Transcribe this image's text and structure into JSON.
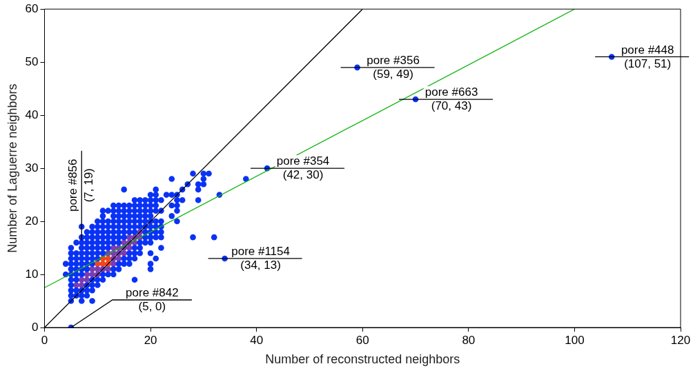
{
  "chart_data": {
    "type": "scatter",
    "xlabel": "Number of reconstructed neighbors",
    "ylabel": "Number of Laguerre neighbors",
    "xlim": [
      0,
      120
    ],
    "xticks": [
      0,
      20,
      40,
      60,
      80,
      100,
      120
    ],
    "ylim": [
      0,
      60
    ],
    "yticks": [
      0,
      10,
      20,
      30,
      40,
      50,
      60
    ],
    "grid": false,
    "marker": "circle",
    "series": [
      {
        "color": "#0a32f5",
        "x": [
          5,
          7,
          9,
          5,
          6,
          7,
          8,
          5,
          6,
          7,
          8,
          9,
          5,
          8,
          9,
          10,
          5,
          6,
          9,
          10,
          11,
          17,
          4,
          5,
          6,
          7,
          11,
          12,
          13,
          5,
          6,
          7,
          8,
          13,
          14,
          20,
          4,
          5,
          6,
          7,
          8,
          9,
          14,
          15,
          16,
          20,
          5,
          6,
          7,
          8,
          9,
          10,
          15,
          16,
          17,
          21,
          5,
          6,
          7,
          8,
          9,
          10,
          11,
          16,
          17,
          18,
          20,
          5,
          7,
          8,
          9,
          10,
          11,
          12,
          17,
          18,
          22,
          6,
          7,
          8,
          9,
          10,
          11,
          12,
          13,
          14,
          18,
          19,
          20,
          7,
          8,
          9,
          10,
          11,
          12,
          13,
          14,
          15,
          19,
          20,
          21,
          22,
          28,
          32,
          8,
          9,
          10,
          11,
          12,
          13,
          14,
          15,
          16,
          17,
          19,
          20,
          21,
          22,
          7,
          9,
          10,
          11,
          12,
          13,
          14,
          15,
          16,
          17,
          18,
          19,
          20,
          21,
          22,
          10,
          11,
          12,
          13,
          14,
          15,
          16,
          17,
          18,
          19,
          20,
          21,
          22,
          25,
          11,
          13,
          14,
          15,
          16,
          17,
          18,
          19,
          20,
          24,
          11,
          12,
          13,
          14,
          15,
          16,
          17,
          18,
          19,
          20,
          21,
          22,
          25,
          13,
          14,
          15,
          16,
          17,
          18,
          19,
          20,
          21,
          24,
          25,
          17,
          18,
          19,
          20,
          21,
          22,
          25,
          26,
          29,
          20,
          21,
          23,
          24,
          25,
          33,
          15,
          21,
          26,
          29,
          27,
          29,
          30,
          24,
          30,
          38,
          28,
          30,
          31,
          5,
          34,
          42,
          59,
          70,
          107
        ],
        "values": [
          5,
          5,
          5,
          6,
          6,
          6,
          6,
          7,
          7,
          7,
          7,
          7,
          8,
          8,
          8,
          8,
          9,
          9,
          9,
          9,
          9,
          9,
          10,
          10,
          10,
          10,
          10,
          10,
          10,
          11,
          11,
          11,
          11,
          11,
          11,
          11,
          12,
          12,
          12,
          12,
          12,
          12,
          12,
          12,
          12,
          12,
          13,
          13,
          13,
          13,
          13,
          13,
          13,
          13,
          13,
          13,
          14,
          14,
          14,
          14,
          14,
          14,
          14,
          14,
          14,
          14,
          14,
          15,
          15,
          15,
          15,
          15,
          15,
          15,
          15,
          15,
          15,
          16,
          16,
          16,
          16,
          16,
          16,
          16,
          16,
          16,
          16,
          16,
          16,
          17,
          17,
          17,
          17,
          17,
          17,
          17,
          17,
          17,
          17,
          17,
          17,
          17,
          17,
          17,
          18,
          18,
          18,
          18,
          18,
          18,
          18,
          18,
          18,
          18,
          18,
          18,
          18,
          18,
          19,
          19,
          19,
          19,
          19,
          19,
          19,
          19,
          19,
          19,
          19,
          19,
          19,
          19,
          19,
          20,
          20,
          20,
          20,
          20,
          20,
          20,
          20,
          20,
          20,
          20,
          20,
          20,
          20,
          21,
          21,
          21,
          21,
          21,
          21,
          21,
          21,
          21,
          21,
          22,
          22,
          22,
          22,
          22,
          22,
          22,
          22,
          22,
          22,
          22,
          22,
          22,
          23,
          23,
          23,
          23,
          23,
          23,
          23,
          23,
          23,
          23,
          23,
          24,
          24,
          24,
          24,
          24,
          24,
          24,
          24,
          24,
          25,
          25,
          25,
          25,
          25,
          25,
          26,
          26,
          26,
          26,
          27,
          27,
          27,
          28,
          28,
          28,
          29,
          29,
          29,
          0,
          13,
          30,
          49,
          43,
          51
        ]
      },
      {
        "color": "#7a3cb4",
        "x": [
          6,
          7,
          7,
          8,
          8,
          9,
          10,
          9,
          10,
          11,
          12,
          13,
          13,
          14,
          12,
          13,
          14,
          15,
          13,
          14,
          15,
          16,
          15,
          16,
          17,
          16,
          17,
          18,
          18
        ],
        "values": [
          8,
          8,
          9,
          9,
          10,
          10,
          10,
          11,
          11,
          11,
          11,
          12,
          13,
          13,
          14,
          14,
          14,
          14,
          15,
          15,
          15,
          15,
          16,
          16,
          16,
          17,
          17,
          17,
          18
        ]
      },
      {
        "color": "#f0461e",
        "x": [
          10,
          11,
          12,
          11,
          12
        ],
        "values": [
          12,
          12,
          12,
          13,
          13
        ]
      },
      {
        "type": "line",
        "marker": "none",
        "color": "#000000",
        "x": [
          0,
          60
        ],
        "values": [
          0,
          60
        ]
      },
      {
        "type": "line",
        "marker": "none",
        "color": "#10b410",
        "x": [
          0,
          100
        ],
        "values": [
          7.5,
          60
        ]
      }
    ],
    "annotations": [
      {
        "text": "pore #356\n(59, 49)",
        "x": 59,
        "y": 49
      },
      {
        "text": "pore #663\n(70, 43)",
        "x": 70,
        "y": 43
      },
      {
        "text": "pore #448\n(107, 51)",
        "x": 107,
        "y": 51
      },
      {
        "text": "pore #354\n(42, 30)",
        "x": 42,
        "y": 30
      },
      {
        "text": "pore #1154\n(34, 13)",
        "x": 34,
        "y": 13
      },
      {
        "text": "pore #842\n(5, 0)",
        "x": 5,
        "y": 0
      },
      {
        "text": "pore #856\n(7, 19)",
        "x": 7,
        "y": 19
      }
    ]
  }
}
